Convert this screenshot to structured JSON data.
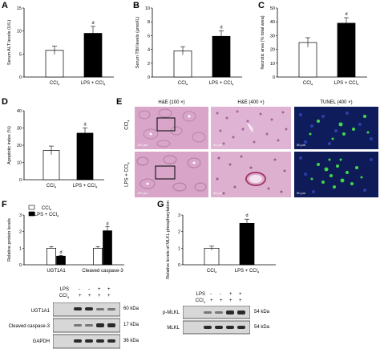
{
  "panel_letters": {
    "A": "A",
    "B": "B",
    "C": "C",
    "D": "D",
    "E": "E",
    "F": "F",
    "G": "G"
  },
  "colors": {
    "ctrl": "#ffffff",
    "treat": "#000000",
    "he_bg": "#d9a9cc",
    "he_dark": "#b06f9c",
    "tunel_bg": "#0d1a55",
    "tunel_green": "#3cd24a"
  },
  "chart_data": [
    {
      "id": "A",
      "type": "bar",
      "categories": [
        "CCl4",
        "LPS + CCl4"
      ],
      "values": [
        5.8,
        9.5
      ],
      "errors": [
        0.9,
        1.5
      ],
      "ylabel": "Serum ALT levels (U/L)",
      "ylim": [
        0,
        15
      ],
      "yticks": [
        "0",
        "5",
        "10",
        "15"
      ],
      "annotations": [
        "d"
      ],
      "colors": [
        "#ffffff",
        "#000000"
      ]
    },
    {
      "id": "B",
      "type": "bar",
      "categories": [
        "CCl4",
        "LPS + CCl4"
      ],
      "values": [
        3.8,
        5.9
      ],
      "errors": [
        0.6,
        0.8
      ],
      "ylabel": "Serum TBil levels (μmol/L)",
      "ylim": [
        0,
        10
      ],
      "yticks": [
        "0",
        "2",
        "4",
        "6",
        "8",
        "10"
      ],
      "annotations": [
        "d"
      ],
      "colors": [
        "#ffffff",
        "#000000"
      ]
    },
    {
      "id": "C",
      "type": "bar",
      "categories": [
        "CCl4",
        "LPS + CCl4"
      ],
      "values": [
        25,
        39
      ],
      "errors": [
        3.5,
        4
      ],
      "ylabel": "Necrotic area (% total area)",
      "ylim": [
        0,
        50
      ],
      "yticks": [
        "0",
        "10",
        "20",
        "30",
        "40",
        "50"
      ],
      "annotations": [
        "d"
      ],
      "colors": [
        "#ffffff",
        "#000000"
      ]
    },
    {
      "id": "D",
      "type": "bar",
      "categories": [
        "CCl4",
        "LPS + CCl4"
      ],
      "values": [
        17,
        27
      ],
      "errors": [
        2.5,
        3
      ],
      "ylabel": "Apoptotic index (%)",
      "ylim": [
        0,
        40
      ],
      "yticks": [
        "0",
        "10",
        "20",
        "30",
        "40"
      ],
      "annotations": [
        "d"
      ],
      "colors": [
        "#ffffff",
        "#000000"
      ]
    },
    {
      "id": "F",
      "type": "bar",
      "categories": [
        "UGT1A1",
        "Cleaved caspase-3"
      ],
      "series": [
        {
          "name": "CCl4",
          "values": [
            1.0,
            1.0
          ],
          "errors": [
            0.1,
            0.1
          ]
        },
        {
          "name": "LPS + CCl4",
          "values": [
            0.52,
            2.05
          ],
          "errors": [
            0.05,
            0.25
          ]
        }
      ],
      "ylabel": "Relative protein levels",
      "ylim": [
        0,
        3
      ],
      "yticks": [
        "0",
        "1",
        "2",
        "3"
      ],
      "annotations": [
        "d",
        "d"
      ],
      "colors": [
        "#ffffff",
        "#000000"
      ],
      "legend": "top-left"
    },
    {
      "id": "G",
      "type": "bar",
      "categories": [
        "CCl4",
        "LPS + CCl4"
      ],
      "values": [
        1.0,
        2.5
      ],
      "errors": [
        0.12,
        0.25
      ],
      "ylabel": "Relative levels of MLKL phosphorylation",
      "ylim": [
        0,
        3
      ],
      "yticks": [
        "0",
        "1",
        "2",
        "3"
      ],
      "annotations": [
        "d"
      ],
      "colors": [
        "#ffffff",
        "#000000"
      ]
    }
  ],
  "micrographs": {
    "titles": [
      "H&E (100 ×)",
      "H&E (400 ×)",
      "TUNEL (400 ×)"
    ],
    "rows": [
      "CCl4",
      "LPS + CCl4"
    ],
    "scales": [
      "100 μm",
      "50 μm",
      "50 μm"
    ]
  },
  "blot_F": {
    "treatments": [
      {
        "label": "LPS",
        "signs": [
          "-",
          "-",
          "+",
          "+"
        ]
      },
      {
        "label": "CCl4",
        "signs": [
          "+",
          "+",
          "+",
          "+"
        ]
      }
    ],
    "bands": [
      {
        "name": "UGT1A1",
        "kda": "60 kDa"
      },
      {
        "name": "Cleaved caspase-3",
        "kda": "17 kDa"
      },
      {
        "name": "GAPDH",
        "kda": "36 kDa"
      }
    ]
  },
  "blot_G": {
    "treatments": [
      {
        "label": "LPS",
        "signs": [
          "-",
          "-",
          "+",
          "+"
        ]
      },
      {
        "label": "CCl4",
        "signs": [
          "+",
          "+",
          "+",
          "+"
        ]
      }
    ],
    "bands": [
      {
        "name": "p-MLKL",
        "kda": "54 kDa"
      },
      {
        "name": "MLKL",
        "kda": "54 kDa"
      }
    ]
  }
}
